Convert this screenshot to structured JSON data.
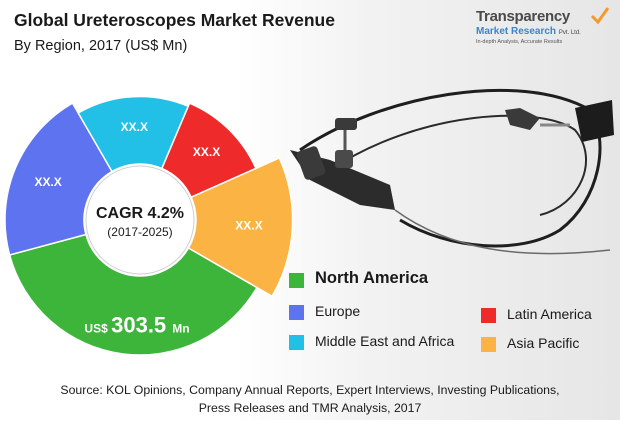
{
  "chart_data": {
    "type": "pie",
    "title": "Global Ureteroscopes Market Revenue",
    "subtitle": "By Region, 2017 (US$ Mn)",
    "center_label": "CAGR 4.2%",
    "center_sublabel": "(2017-2025)",
    "slices": [
      {
        "name": "North America",
        "value_label_prefix": "US$",
        "value_label": "303.5",
        "value_label_suffix": "Mn",
        "color": "#3db53b",
        "start": 120,
        "end": 255,
        "outer": 1.0
      },
      {
        "name": "Europe",
        "value_label": "XX.X",
        "color": "#5d73ef",
        "start": 255,
        "end": 330,
        "outer": 1.0
      },
      {
        "name": "Middle East and Africa",
        "value_label": "XX.X",
        "color": "#22bfe6",
        "start": 330,
        "end": 383,
        "outer": 0.915
      },
      {
        "name": "Latin America",
        "value_label": "XX.X",
        "color": "#ee2a2a",
        "start": 383,
        "end": 426,
        "outer": 0.94
      },
      {
        "name": "Asia Pacific",
        "value_label": "XX.X",
        "color": "#fbb444",
        "start": 66,
        "end": 120,
        "outer": 1.13
      }
    ],
    "legend": [
      {
        "label": "North America",
        "color": "#3db53b"
      },
      {
        "label": "Europe",
        "color": "#5d73ef"
      },
      {
        "label": "Latin America",
        "color": "#ee2a2a"
      },
      {
        "label": "Middle East and Africa",
        "color": "#22bfe6"
      },
      {
        "label": "Asia Pacific",
        "color": "#fbb444"
      }
    ]
  },
  "brand": {
    "name": "Transparency",
    "sub": "Market Research",
    "suffix": "Pvt. Ltd.",
    "tagline": "In-depth Analysis, Accurate Results"
  },
  "source": {
    "line1": "Source: KOL Opinions, Company Annual Reports, Expert Interviews, Investing Publications,",
    "line2": "Press Releases and TMR Analysis, 2017"
  },
  "colors": {
    "text": "#1a1a1a",
    "brand_blue": "#3a86c8",
    "check_orange": "#f29a2e"
  }
}
